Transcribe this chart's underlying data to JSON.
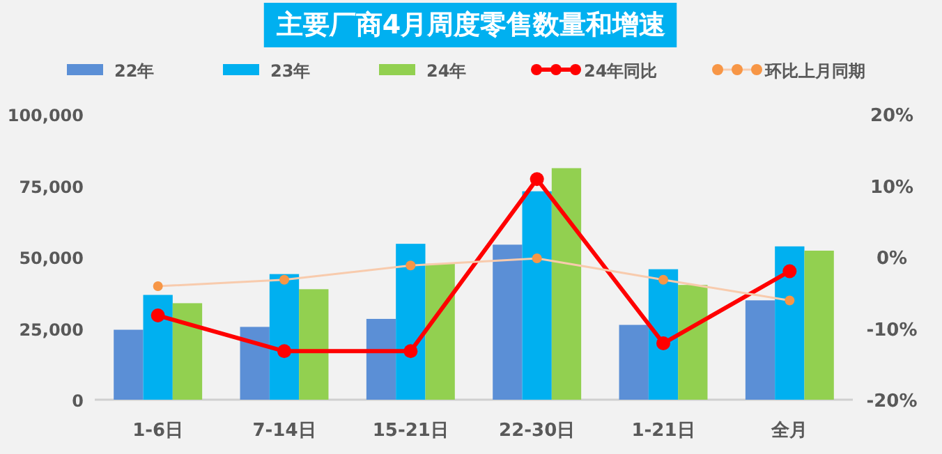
{
  "chart_data": {
    "type": "bar",
    "title": "主要厂商4月周度零售数量和增速",
    "categories": [
      "1-6日",
      "7-14日",
      "15-21日",
      "22-30日",
      "1-21日",
      "全月"
    ],
    "series": [
      {
        "name": "22年",
        "color": "#5b8fd6",
        "values": [
          24500,
          25500,
          28300,
          54300,
          26200,
          34800
        ]
      },
      {
        "name": "23年",
        "color": "#00b0f0",
        "values": [
          36700,
          44000,
          54600,
          73000,
          45700,
          53700
        ]
      },
      {
        "name": "24年",
        "color": "#92d050",
        "values": [
          33800,
          38700,
          47600,
          81100,
          40200,
          52200
        ]
      },
      {
        "name": "24年同比",
        "type": "line",
        "axis": "y2",
        "color": "#ff0000",
        "values": [
          -8.2,
          -13.2,
          -13.2,
          10.9,
          -12.1,
          -2.0
        ]
      },
      {
        "name": "环比上月同期",
        "type": "line",
        "axis": "y2",
        "color": "#f79646",
        "values": [
          -4.1,
          -3.2,
          -1.2,
          -0.2,
          -3.2,
          -6.1
        ]
      }
    ],
    "ylim": [
      0,
      100000
    ],
    "yticks": [
      0,
      {
        "value": 25000,
        "label": "25,000"
      },
      {
        "value": 50000,
        "label": "50,000"
      },
      {
        "value": 75000,
        "label": "75,000"
      },
      {
        "value": 100000,
        "label": "100,000"
      }
    ],
    "y2lim": [
      -20,
      20
    ],
    "y2ticks": [
      {
        "value": -20,
        "label": "-20%"
      },
      {
        "value": -10,
        "label": "-10%"
      },
      {
        "value": 0,
        "label": "0%"
      },
      {
        "value": 10,
        "label": "10%"
      },
      {
        "value": 20,
        "label": "20%"
      }
    ],
    "marker": "circle",
    "legend": "top",
    "grid": false
  }
}
